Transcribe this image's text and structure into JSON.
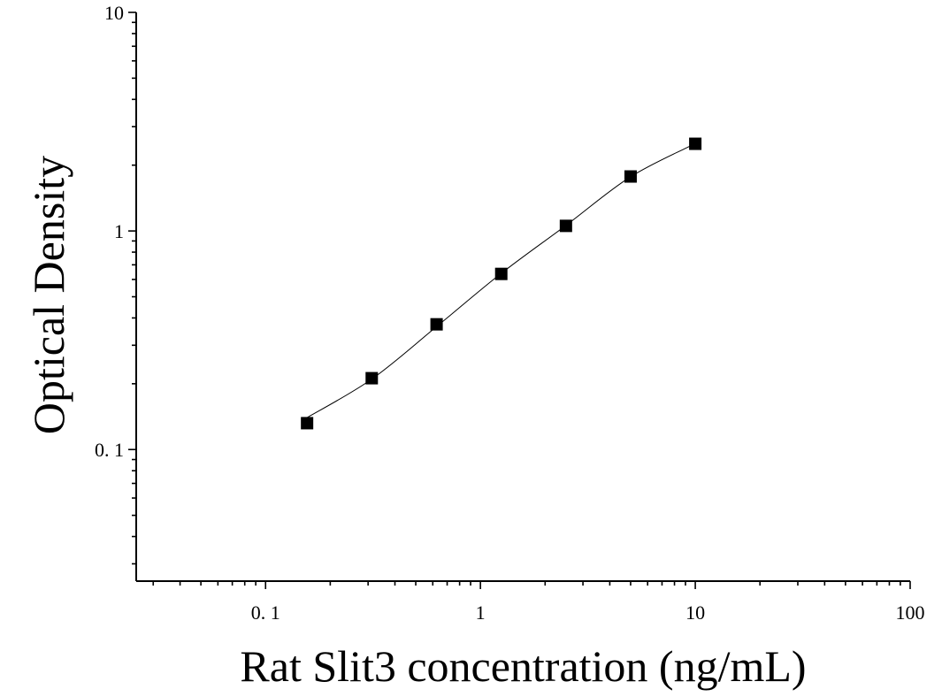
{
  "chart_data": {
    "type": "scatter",
    "xlabel": "Rat Slit3 concentration (ng/mL)",
    "ylabel": "Optical Density",
    "x_scale": "log",
    "y_scale": "log",
    "xlim": [
      0.025,
      100
    ],
    "ylim": [
      0.025,
      10
    ],
    "x_ticks": [
      {
        "value": 0.1,
        "label": "0. 1"
      },
      {
        "value": 1,
        "label": "1"
      },
      {
        "value": 10,
        "label": "10"
      },
      {
        "value": 100,
        "label": "100"
      }
    ],
    "y_ticks": [
      {
        "value": 0.1,
        "label": "0. 1"
      },
      {
        "value": 1,
        "label": "1"
      },
      {
        "value": 10,
        "label": "10"
      }
    ],
    "grid": false,
    "series": [
      {
        "marker": "square",
        "color": "#000000",
        "points": [
          {
            "x": 0.156,
            "y": 0.132
          },
          {
            "x": 0.312,
            "y": 0.212
          },
          {
            "x": 0.625,
            "y": 0.374
          },
          {
            "x": 1.25,
            "y": 0.636
          },
          {
            "x": 2.5,
            "y": 1.055
          },
          {
            "x": 5,
            "y": 1.775
          },
          {
            "x": 10,
            "y": 2.505
          }
        ]
      }
    ],
    "fit_curve": {
      "color": "#000000",
      "points": [
        {
          "x": 0.156,
          "y": 0.14
        },
        {
          "x": 0.312,
          "y": 0.21
        },
        {
          "x": 0.625,
          "y": 0.365
        },
        {
          "x": 1.25,
          "y": 0.64
        },
        {
          "x": 2.5,
          "y": 1.06
        },
        {
          "x": 5,
          "y": 1.77
        },
        {
          "x": 10,
          "y": 2.51
        }
      ]
    }
  }
}
